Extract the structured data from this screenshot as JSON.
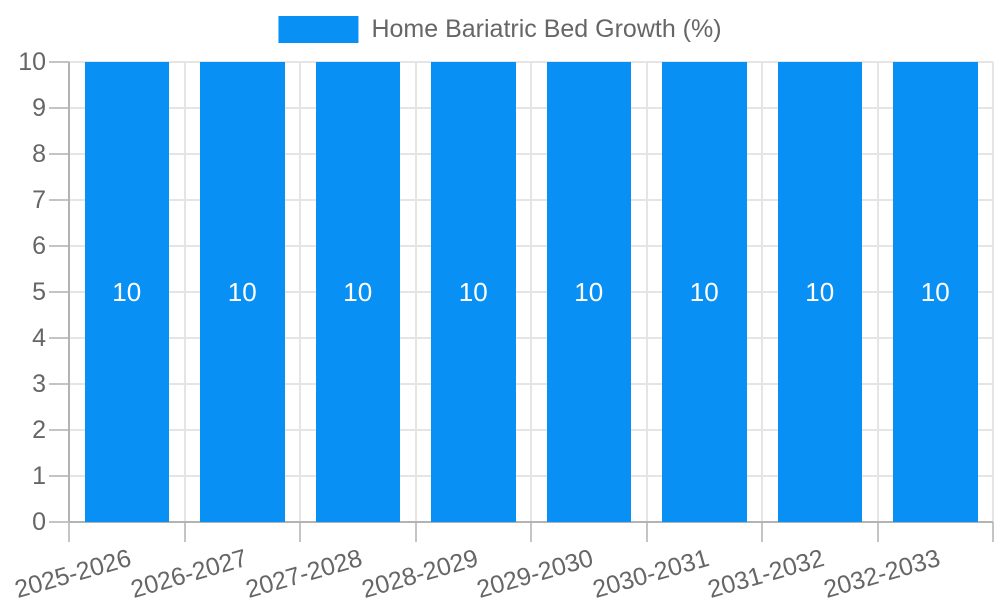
{
  "legend": {
    "label": "Home Bariatric Bed Growth (%)"
  },
  "chart_data": {
    "type": "bar",
    "title": "Home Bariatric Bed Growth (%)",
    "categories": [
      "2025-2026",
      "2026-2027",
      "2027-2028",
      "2028-2029",
      "2029-2030",
      "2030-2031",
      "2031-2032",
      "2032-2033"
    ],
    "series": [
      {
        "name": "Home Bariatric Bed Growth (%)",
        "values": [
          10,
          10,
          10,
          10,
          10,
          10,
          10,
          10
        ]
      }
    ],
    "bar_value_labels": [
      "10",
      "10",
      "10",
      "10",
      "10",
      "10",
      "10",
      "10"
    ],
    "xlabel": "",
    "ylabel": "",
    "ylim": [
      0,
      10
    ],
    "yticks": [
      0,
      1,
      2,
      3,
      4,
      5,
      6,
      7,
      8,
      9,
      10
    ],
    "grid": true,
    "legend_position": "top",
    "colors": {
      "bar": "#0990f5",
      "bar_label": "#ffffff",
      "tick_text": "#666666",
      "grid": "#e5e5e5",
      "axis": "#b3b3b3",
      "tick_mark": "#c4c4c4"
    }
  }
}
